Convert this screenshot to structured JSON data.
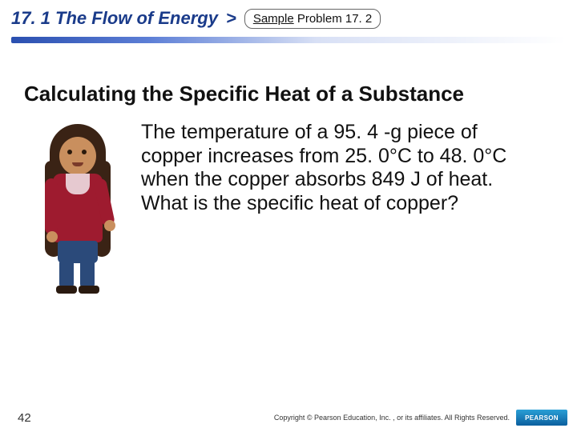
{
  "header": {
    "section": "17. 1 The Flow of Energy",
    "caret": ">",
    "sample_word": "Sample",
    "problem_label": "Problem 17. 2"
  },
  "content": {
    "subtitle": "Calculating the Specific Heat of a Substance",
    "body": "The temperature of a 95. 4 -g piece of copper increases from 25. 0°C to 48. 0°C when the copper absorbs 849 J of heat. What is the specific heat of copper?"
  },
  "footer": {
    "page": "42",
    "copyright": "Copyright © Pearson Education, Inc. , or its affiliates. All Rights Reserved.",
    "logo": "PEARSON"
  },
  "colors": {
    "title": "#1a3b8a",
    "jacket": "#9e1b2f",
    "pants": "#2b4a7a",
    "skin": "#c98f5e",
    "hair": "#3a2315"
  }
}
